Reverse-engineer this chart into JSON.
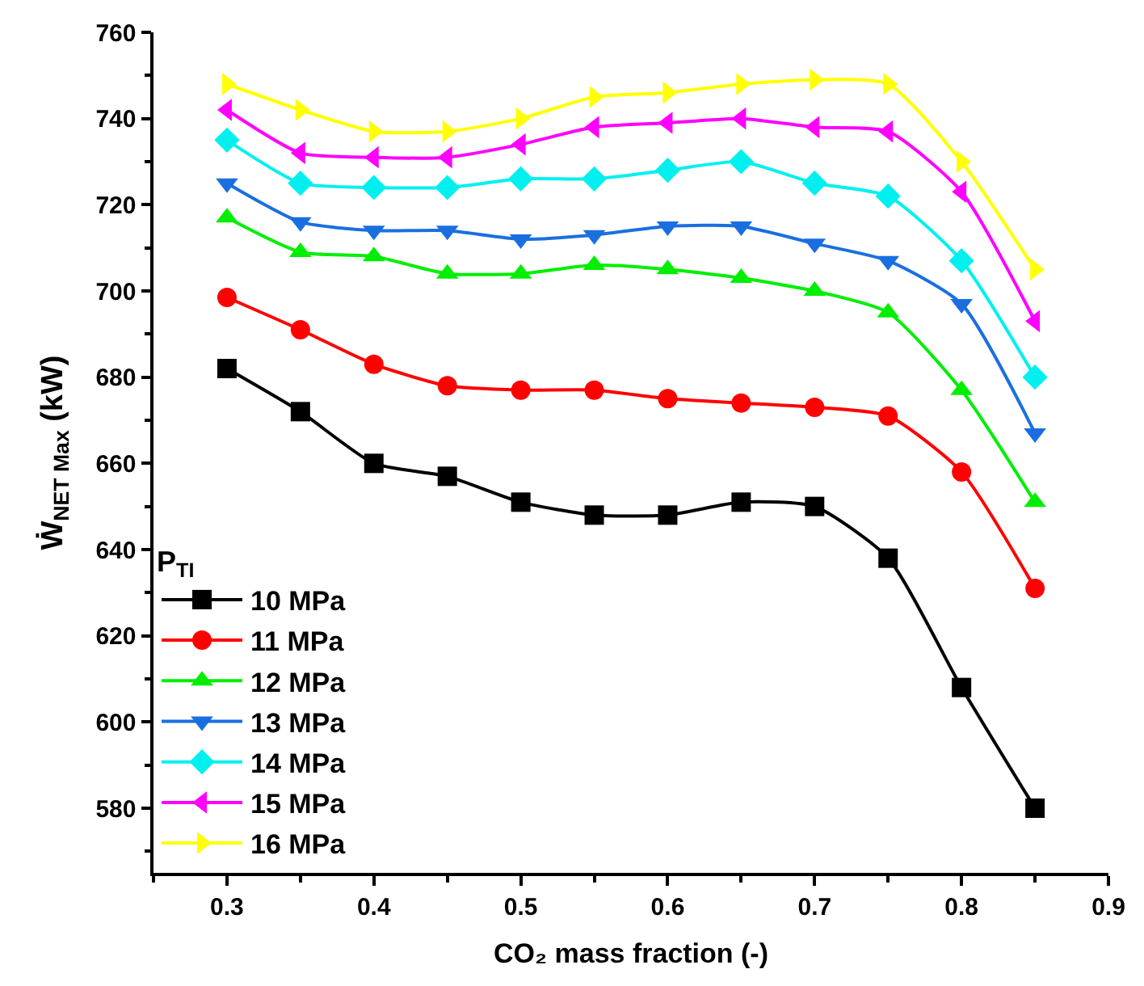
{
  "chart_data": {
    "type": "line",
    "xlabel": "CO₂ mass fraction (-)",
    "ylabel": "Ẇ$_{NET Max}$ (kW)",
    "legend_title": "P$_{TI}$",
    "legend": "bottom left",
    "line_style": "solid",
    "x": [
      0.3,
      0.35,
      0.4,
      0.45,
      0.5,
      0.55,
      0.6,
      0.65,
      0.7,
      0.75,
      0.8,
      0.85
    ],
    "xlim": [
      0.25,
      0.9
    ],
    "xticks": [
      0.3,
      0.4,
      0.5,
      0.6,
      0.7,
      0.8,
      0.9
    ],
    "ylim": [
      565,
      760
    ],
    "yticks": [
      580,
      600,
      620,
      640,
      660,
      680,
      700,
      720,
      740,
      760
    ],
    "series": [
      {
        "name": "10 MPa",
        "color": "#000000",
        "marker": "square",
        "values": [
          682,
          672,
          660,
          657,
          651,
          648,
          648,
          651,
          650,
          638,
          608,
          580
        ]
      },
      {
        "name": "11 MPa",
        "color": "#ff0000",
        "marker": "circle",
        "values": [
          698.5,
          691,
          683,
          678,
          677,
          677,
          675,
          674,
          673,
          671,
          658,
          631
        ]
      },
      {
        "name": "12 MPa",
        "color": "#00ee00",
        "marker": "triangle-up",
        "values": [
          717,
          709,
          708,
          704,
          704,
          706,
          705,
          703,
          700,
          695,
          677,
          651
        ]
      },
      {
        "name": "13 MPa",
        "color": "#1a6fe0",
        "marker": "triangle-down",
        "values": [
          725,
          716,
          714,
          714,
          712,
          713,
          715,
          715,
          711,
          707,
          697,
          667
        ]
      },
      {
        "name": "14 MPa",
        "color": "#00f0f0",
        "marker": "diamond",
        "values": [
          735,
          725,
          724,
          724,
          726,
          726,
          728,
          730,
          725,
          722,
          707,
          680
        ]
      },
      {
        "name": "15 MPa",
        "color": "#ff00ff",
        "marker": "triangle-left",
        "values": [
          742,
          732,
          731,
          731,
          734,
          738,
          739,
          740,
          738,
          737,
          723,
          693
        ]
      },
      {
        "name": "16 MPa",
        "color": "#ffff00",
        "marker": "triangle-right",
        "values": [
          748,
          742,
          737,
          737,
          740,
          745,
          746,
          748,
          749,
          748,
          730,
          705
        ]
      }
    ]
  }
}
